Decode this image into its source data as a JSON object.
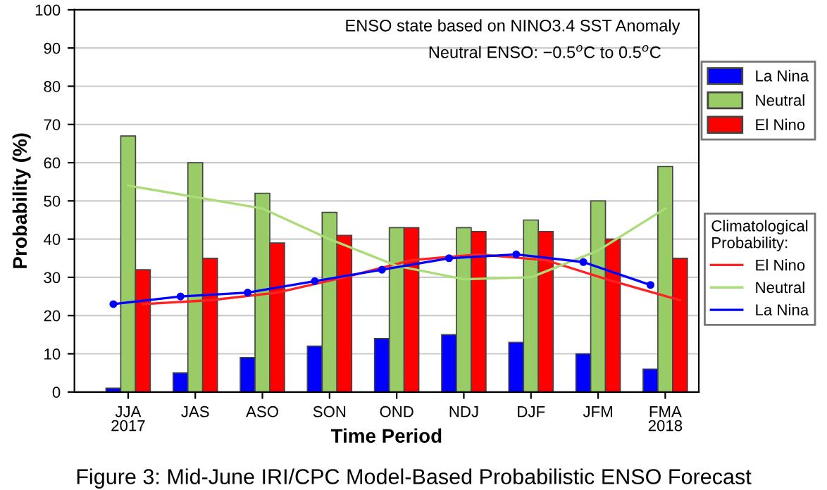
{
  "chart_data": {
    "type": "bar",
    "categories": [
      "JJA\n2017",
      "JAS",
      "ASO",
      "SON",
      "OND",
      "NDJ",
      "DJF",
      "JFM",
      "FMA\n2018"
    ],
    "series": [
      {
        "name": "La Nina",
        "color": "#0000ff",
        "values": [
          1,
          5,
          9,
          12,
          14,
          15,
          13,
          10,
          6
        ]
      },
      {
        "name": "Neutral",
        "color": "#99cc66",
        "values": [
          67,
          60,
          52,
          47,
          43,
          43,
          45,
          50,
          59
        ]
      },
      {
        "name": "El Nino",
        "color": "#ff0000",
        "values": [
          32,
          35,
          39,
          41,
          43,
          42,
          42,
          40,
          35
        ]
      },
      {
        "name": "El Nino",
        "type": "line",
        "marker": "none",
        "color": "#ff2222",
        "values": [
          23,
          24,
          26,
          30,
          34.5,
          36,
          34.5,
          29,
          24
        ]
      },
      {
        "name": "Neutral",
        "type": "line",
        "marker": "none",
        "color": "#aadd77",
        "values": [
          54,
          51,
          48,
          40,
          33,
          29.5,
          30,
          37,
          48
        ]
      },
      {
        "name": "La Nina",
        "type": "line",
        "marker": "circle",
        "color": "#0000ff",
        "values": [
          23,
          25,
          26,
          29,
          32,
          35,
          36,
          34,
          28
        ]
      }
    ],
    "legend_title": "Climatological Probability:",
    "xlabel": "Time Period",
    "ylabel": "Probability (%)",
    "ylim": [
      0,
      100
    ],
    "yticks": [
      0,
      10,
      20,
      30,
      40,
      50,
      60,
      70,
      80,
      90,
      100
    ],
    "grid": "y",
    "legend": "right",
    "annotations": [
      "ENSO state based on NINO3.4 SST Anomaly",
      "Neutral ENSO: −0.5$^{o}$C to 0.5$^{o}$C",
      "Figure 3: Mid-June IRI/CPC Model-Based Probabilistic ENSO Forecast"
    ]
  }
}
